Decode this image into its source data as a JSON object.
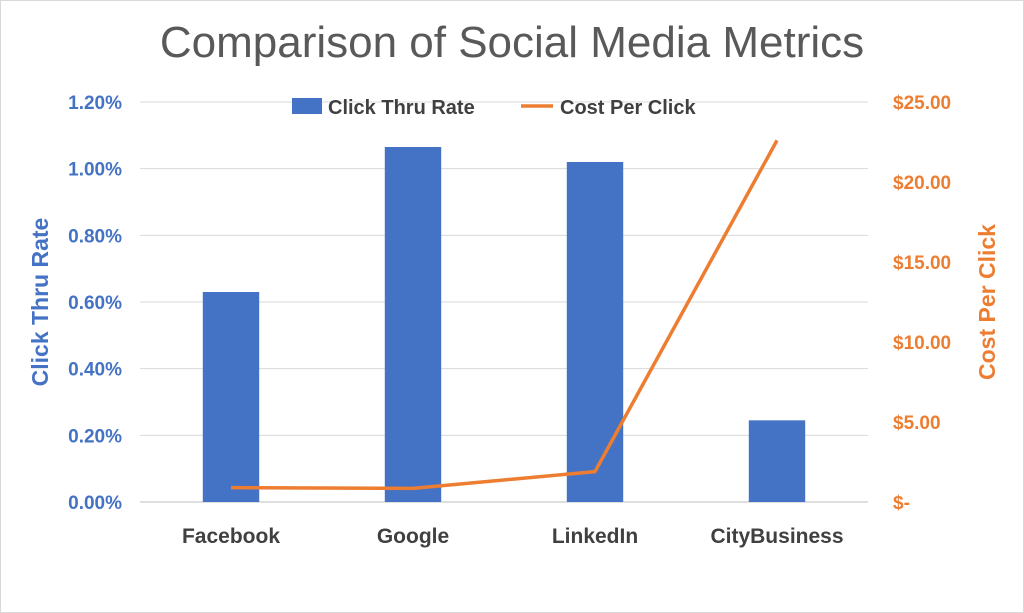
{
  "chart_data": {
    "type": "bar",
    "title": "Comparison of Social Media Metrics",
    "categories": [
      "Facebook",
      "Google",
      "LinkedIn",
      "CityBusiness"
    ],
    "series": [
      {
        "name": "Click Thru Rate",
        "type": "bar",
        "axis": "left",
        "color": "#4472c4",
        "values": [
          0.63,
          1.065,
          1.02,
          0.245
        ]
      },
      {
        "name": "Cost Per Click",
        "type": "line",
        "axis": "right",
        "color": "#ed7d31",
        "values": [
          0.9,
          0.85,
          1.9,
          22.6
        ]
      }
    ],
    "y_left": {
      "label": "Click Thru Rate",
      "range": [
        0,
        1.2
      ],
      "ticks": [
        0,
        0.2,
        0.4,
        0.6,
        0.8,
        1.0,
        1.2
      ],
      "tick_labels": [
        "0.00%",
        "0.20%",
        "0.40%",
        "0.60%",
        "0.80%",
        "1.00%",
        "1.20%"
      ],
      "color": "#4472c4"
    },
    "y_right": {
      "label": "Cost Per Click",
      "range": [
        0,
        25
      ],
      "ticks": [
        0,
        5,
        10,
        15,
        20,
        25
      ],
      "tick_labels": [
        "$-",
        "$5.00",
        "$10.00",
        "$15.00",
        "$20.00",
        "$25.00"
      ],
      "color": "#ed7d31"
    },
    "grid": true,
    "legend": "top"
  }
}
